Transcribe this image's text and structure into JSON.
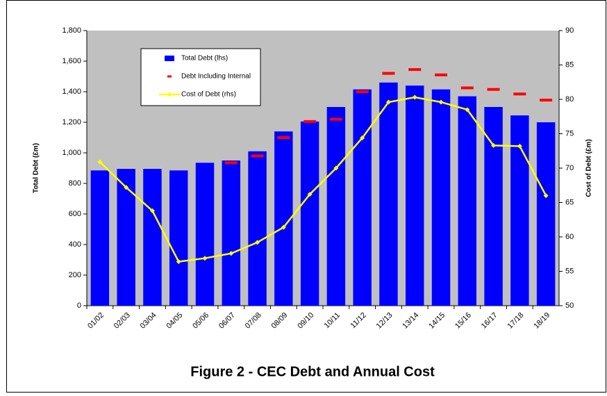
{
  "chart_data": {
    "type": "bar",
    "title": "Figure 2 - CEC Debt and Annual Cost",
    "ylabel": "Total Debt (£m)",
    "y2label": "Cost of Debt (£m)",
    "categories": [
      "01/02",
      "02/03",
      "03/04",
      "04/05",
      "05/06",
      "06/07",
      "07/08",
      "08/09",
      "09/10",
      "10/11",
      "11/12",
      "12/13",
      "13/14",
      "14/15",
      "15/16",
      "16/17",
      "17/18",
      "18/19"
    ],
    "series": [
      {
        "name": "Total Debt (lhs)",
        "type": "bar",
        "color": "#0000ff",
        "values": [
          885,
          895,
          895,
          885,
          935,
          950,
          1010,
          1140,
          1205,
          1300,
          1415,
          1460,
          1440,
          1415,
          1370,
          1300,
          1245,
          1200
        ]
      },
      {
        "name": "Debt Including Internal",
        "type": "dash",
        "color": "#ff0000",
        "values": [
          null,
          null,
          null,
          null,
          null,
          935,
          980,
          1100,
          1205,
          1220,
          1400,
          1520,
          1545,
          1510,
          1425,
          1415,
          1385,
          1345
        ]
      },
      {
        "name": "Cost of Debt (rhs)",
        "type": "line",
        "color": "#ffff00",
        "axis": "y2",
        "values": [
          70.9,
          67.2,
          63.8,
          56.4,
          56.9,
          57.6,
          59.2,
          61.4,
          66.2,
          70.0,
          74.4,
          79.6,
          80.3,
          79.6,
          78.5,
          73.3,
          73.2,
          66.0
        ]
      }
    ],
    "ylim": [
      0,
      1800
    ],
    "yticks": [
      0,
      200,
      400,
      600,
      800,
      {
        "value": 1000,
        "label": "1,000"
      },
      {
        "value": 1200,
        "label": "1,200"
      },
      {
        "value": 1400,
        "label": "1,400"
      },
      {
        "value": 1600,
        "label": "1,600"
      },
      {
        "value": 1800,
        "label": "1,800"
      }
    ],
    "y2lim": [
      50,
      90
    ],
    "y2ticks": [
      50,
      55,
      60,
      65,
      70,
      75,
      80,
      85,
      90
    ],
    "legend": "upper left"
  }
}
